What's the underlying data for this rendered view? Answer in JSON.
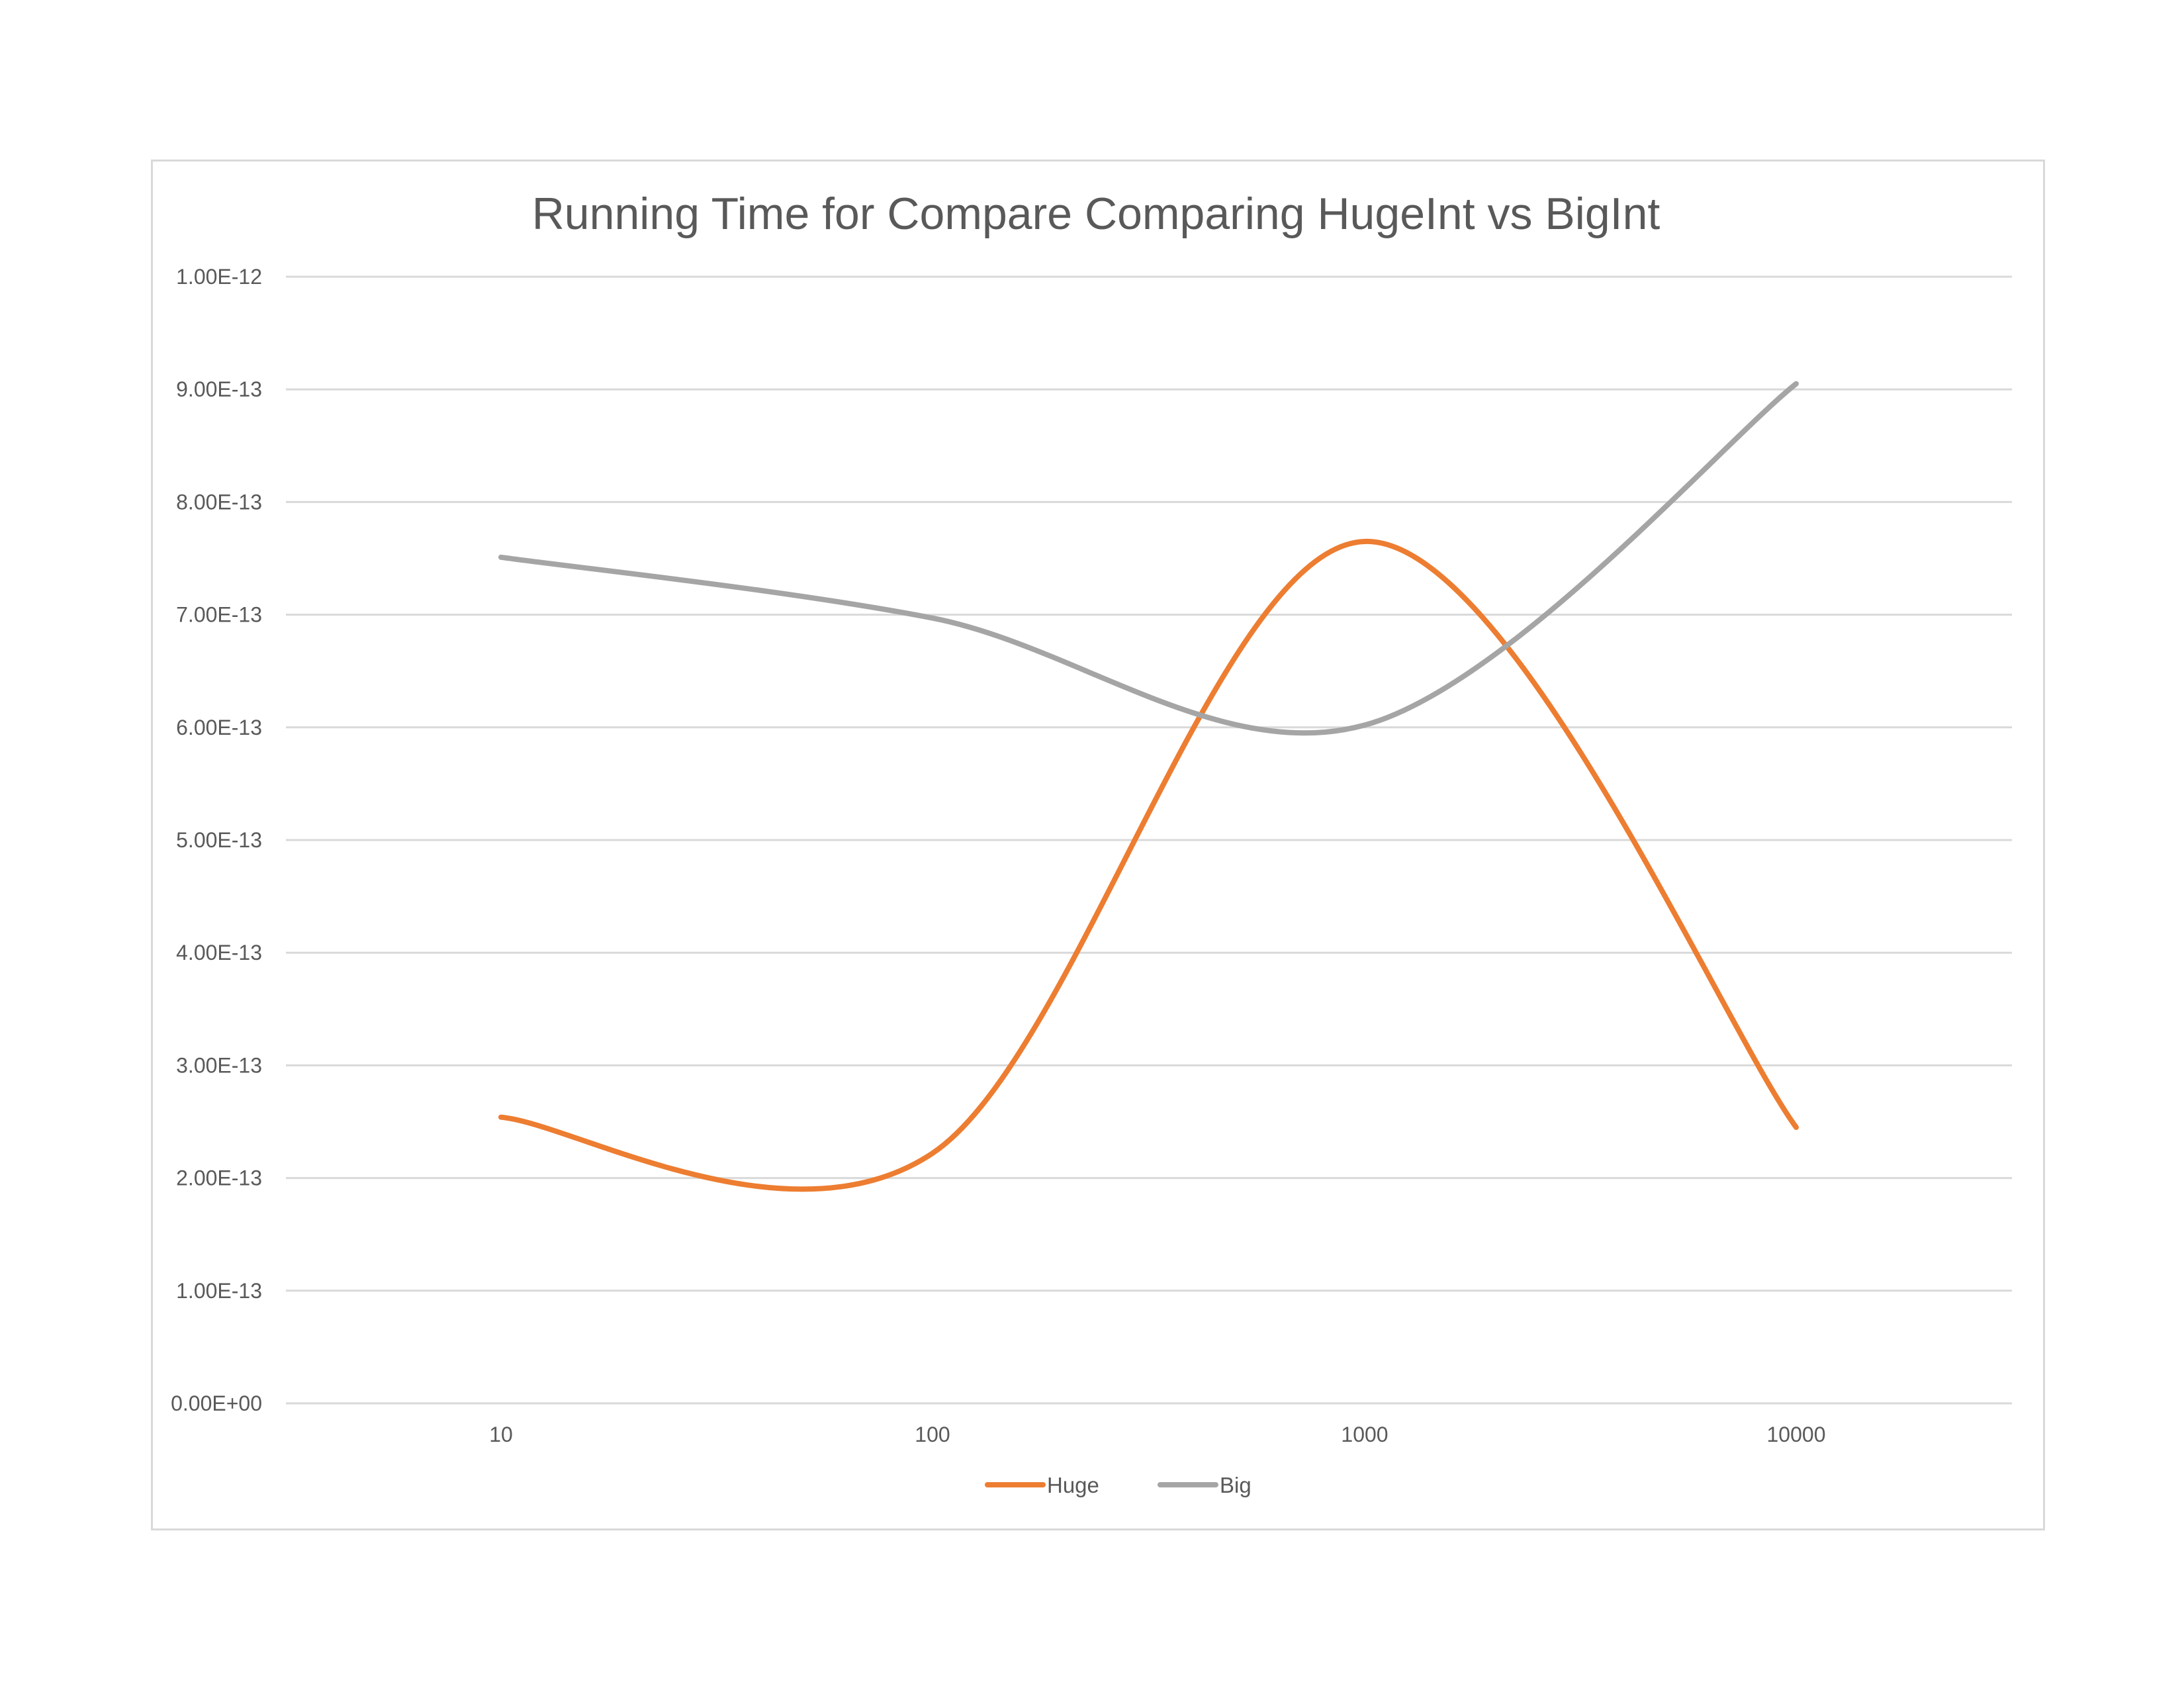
{
  "chart_data": {
    "type": "line",
    "title": "Running Time for Compare Comparing HugeInt vs BigInt",
    "xlabel": "",
    "ylabel": "",
    "x_scale": "category",
    "categories": [
      "10",
      "100",
      "1000",
      "10000"
    ],
    "y_scale": "linear",
    "ylim": [
      0,
      1e-12
    ],
    "y_ticks": [
      0,
      1e-13,
      2e-13,
      3e-13,
      4e-13,
      5e-13,
      6e-13,
      7e-13,
      8e-13,
      9e-13,
      1e-12
    ],
    "y_tick_labels": [
      "0.00E+00",
      "1.00E-13",
      "2.00E-13",
      "3.00E-13",
      "4.00E-13",
      "5.00E-13",
      "6.00E-13",
      "7.00E-13",
      "8.00E-13",
      "9.00E-13",
      "1.00E-12"
    ],
    "grid": true,
    "smoothed": true,
    "legend_position": "bottom",
    "series": [
      {
        "name": "Huge",
        "color": "#ED7D31",
        "values": [
          2.54e-13,
          2.22e-13,
          7.65e-13,
          2.45e-13
        ]
      },
      {
        "name": "Big",
        "color": "#A5A5A5",
        "values": [
          7.51e-13,
          6.97e-13,
          6.02e-13,
          9.05e-13
        ]
      }
    ]
  }
}
